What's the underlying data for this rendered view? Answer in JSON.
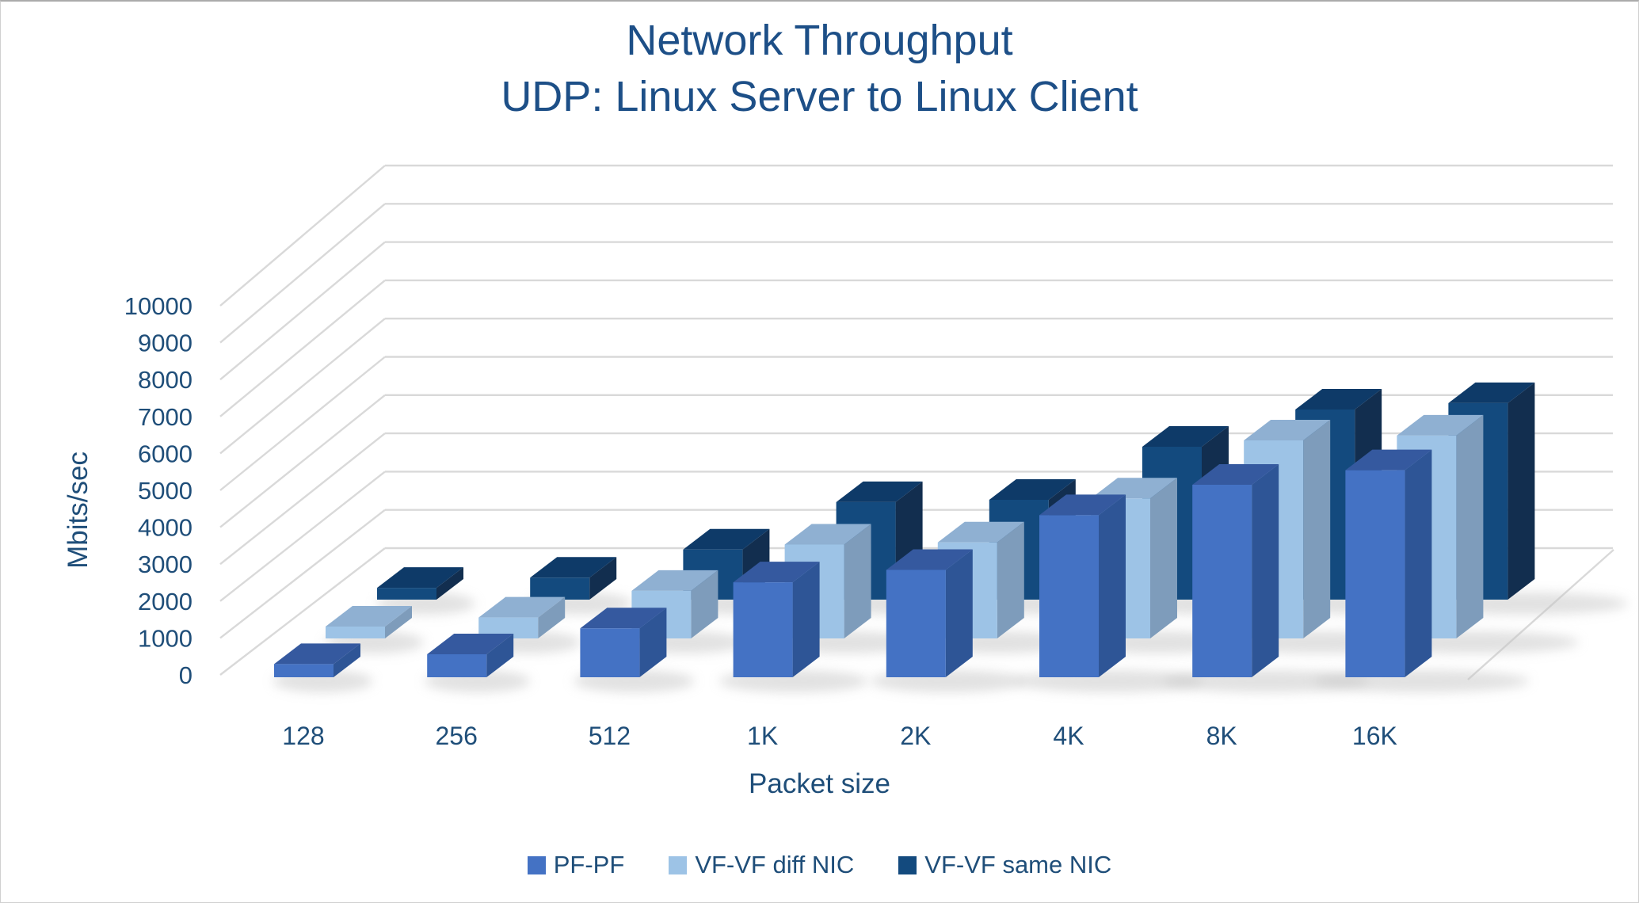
{
  "window": {
    "background": "#ffffff",
    "border_color": "#d0d0d0"
  },
  "chart_data": {
    "type": "bar",
    "style": "3d-column",
    "title": "Network Throughput",
    "subtitle": "UDP: Linux Server to Linux Client",
    "xlabel": "Packet size",
    "ylabel": "Mbits/sec",
    "ylim": [
      0,
      10000
    ],
    "yticks": [
      0,
      1000,
      2000,
      3000,
      4000,
      5000,
      6000,
      7000,
      8000,
      9000,
      10000
    ],
    "grid": true,
    "legend_position": "bottom",
    "categories": [
      "128",
      "256",
      "512",
      "1K",
      "2K",
      "4K",
      "8K",
      "16K"
    ],
    "series": [
      {
        "name": "PF-PF",
        "color": "#4472C4",
        "color_top": "#35599F",
        "color_side": "#2E5596",
        "values": [
          360,
          630,
          1340,
          2600,
          2940,
          4440,
          5270,
          5670
        ]
      },
      {
        "name": "VF-VF diff NIC",
        "color": "#9DC3E6",
        "color_top": "#8FB0D2",
        "color_side": "#7E9CBB",
        "values": [
          320,
          560,
          1280,
          2520,
          2580,
          3760,
          5320,
          5450
        ]
      },
      {
        "name": "VF-VF same NIC",
        "color": "#134A7E",
        "color_top": "#0E3A68",
        "color_side": "#122E4F",
        "values": [
          310,
          580,
          1320,
          2570,
          2630,
          4030,
          5010,
          5180
        ]
      }
    ],
    "text_color": "#1F4E79",
    "title_color": "#1D4F87",
    "gridline_color": "#D9D9D9",
    "shadow_color": "#c4c4c4"
  }
}
